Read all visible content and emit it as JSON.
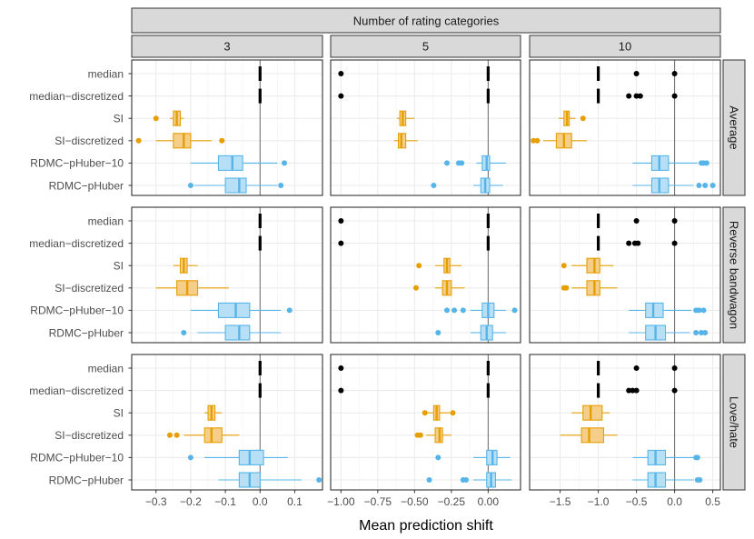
{
  "chart_data": {
    "type": "boxplot",
    "facet_title": "Number of rating categories",
    "col_facets": [
      "3",
      "5",
      "10"
    ],
    "row_facets": [
      "Average",
      "Reverse bandwagon",
      "Love/hate"
    ],
    "methods": [
      "median",
      "median−discretized",
      "SI",
      "SI−discretized",
      "RDMC−pHuber−10",
      "RDMC−pHuber"
    ],
    "xlabel": "Mean prediction shift",
    "colors": {
      "black": "#000000",
      "orange": "#E69F00",
      "blue": "#56B4E9"
    },
    "method_colors": [
      "black",
      "black",
      "orange",
      "orange",
      "blue",
      "blue"
    ],
    "columns": [
      {
        "xlim": [
          -0.37,
          0.18
        ],
        "ticks": [
          -0.3,
          -0.2,
          -0.1,
          0.0,
          0.1
        ],
        "tick_labels": [
          "−0.3",
          "−0.2",
          "−0.1",
          "0.0",
          "0.1"
        ]
      },
      {
        "xlim": [
          -1.07,
          0.22
        ],
        "ticks": [
          -1.0,
          -0.75,
          -0.5,
          -0.25,
          0.0
        ],
        "tick_labels": [
          "−1.00",
          "−0.75",
          "−0.50",
          "−0.25",
          "0.00"
        ]
      },
      {
        "xlim": [
          -1.9,
          0.6
        ],
        "ticks": [
          -1.5,
          -1.0,
          -0.5,
          0.0,
          0.5
        ],
        "tick_labels": [
          "−1.5",
          "−1.0",
          "−0.5",
          "0.0",
          "0.5"
        ]
      }
    ],
    "panels": [
      [
        {
          "boxes": [
            [
              0,
              0,
              0,
              0,
              0
            ],
            [
              0,
              0,
              0,
              0,
              0
            ],
            [
              -0.26,
              -0.25,
              -0.24,
              -0.23,
              -0.22
            ],
            [
              -0.3,
              -0.25,
              -0.22,
              -0.2,
              -0.14
            ],
            [
              -0.2,
              -0.12,
              -0.08,
              -0.05,
              0.05
            ],
            [
              -0.19,
              -0.1,
              -0.06,
              -0.04,
              0.05
            ]
          ],
          "outliers": [
            [],
            [],
            [
              -0.3
            ],
            [
              -0.35,
              -0.11
            ],
            [
              0.07
            ],
            [
              -0.2,
              0.06
            ]
          ]
        },
        {
          "boxes": [
            [
              0,
              0,
              0,
              0,
              0
            ],
            [
              0,
              0,
              0,
              0,
              0
            ],
            [
              -0.62,
              -0.6,
              -0.58,
              -0.56,
              -0.5
            ],
            [
              -0.64,
              -0.61,
              -0.59,
              -0.56,
              -0.48
            ],
            [
              -0.08,
              -0.04,
              -0.01,
              0.01,
              0.12
            ],
            [
              -0.1,
              -0.05,
              -0.02,
              0.01,
              0.1
            ]
          ],
          "outliers": [
            [
              -1.0
            ],
            [
              -1.0
            ],
            [],
            [],
            [
              -0.28,
              -0.2,
              -0.18
            ],
            [
              -0.37
            ]
          ]
        },
        {
          "boxes": [
            [
              -1.0,
              -1.0,
              -1.0,
              -1.0,
              -1.0
            ],
            [
              -1.0,
              -1.0,
              -1.0,
              -1.0,
              -1.0
            ],
            [
              -1.52,
              -1.45,
              -1.41,
              -1.38,
              -1.3
            ],
            [
              -1.72,
              -1.55,
              -1.45,
              -1.35,
              -1.15
            ],
            [
              -0.55,
              -0.3,
              -0.2,
              -0.08,
              0.3
            ],
            [
              -0.55,
              -0.3,
              -0.2,
              -0.08,
              0.25
            ]
          ],
          "outliers": [
            [
              -0.5,
              0.0
            ],
            [
              -0.6,
              -0.5,
              -0.45,
              0.0
            ],
            [
              -1.2
            ],
            [
              -1.85,
              -1.8
            ],
            [
              0.35,
              0.38,
              0.42
            ],
            [
              0.32,
              0.4,
              0.5
            ]
          ]
        }
      ],
      [
        {
          "boxes": [
            [
              0,
              0,
              0,
              0,
              0
            ],
            [
              0,
              0,
              0,
              0,
              0
            ],
            [
              -0.25,
              -0.23,
              -0.22,
              -0.21,
              -0.18
            ],
            [
              -0.3,
              -0.24,
              -0.21,
              -0.18,
              -0.09
            ],
            [
              -0.2,
              -0.12,
              -0.07,
              -0.03,
              0.06
            ],
            [
              -0.18,
              -0.1,
              -0.06,
              -0.03,
              0.06
            ]
          ],
          "outliers": [
            [],
            [],
            [],
            [],
            [
              0.085
            ],
            [
              -0.22
            ]
          ]
        },
        {
          "boxes": [
            [
              0,
              0,
              0,
              0,
              0
            ],
            [
              0,
              0,
              0,
              0,
              0
            ],
            [
              -0.36,
              -0.3,
              -0.28,
              -0.26,
              -0.18
            ],
            [
              -0.36,
              -0.31,
              -0.28,
              -0.25,
              -0.16
            ],
            [
              -0.12,
              -0.04,
              0.0,
              0.04,
              0.12
            ],
            [
              -0.12,
              -0.05,
              -0.01,
              0.03,
              0.12
            ]
          ],
          "outliers": [
            [
              -1.0
            ],
            [
              -1.0
            ],
            [
              -0.47
            ],
            [
              -0.49
            ],
            [
              -0.28,
              -0.23,
              -0.17,
              0.18
            ],
            [
              -0.34
            ]
          ]
        },
        {
          "boxes": [
            [
              -1.0,
              -1.0,
              -1.0,
              -1.0,
              -1.0
            ],
            [
              -1.0,
              -1.0,
              -1.0,
              -1.0,
              -1.0
            ],
            [
              -1.35,
              -1.15,
              -1.05,
              -0.98,
              -0.8
            ],
            [
              -1.35,
              -1.15,
              -1.05,
              -0.98,
              -0.75
            ],
            [
              -0.6,
              -0.38,
              -0.28,
              -0.15,
              0.22
            ],
            [
              -0.6,
              -0.38,
              -0.25,
              -0.12,
              0.2
            ]
          ],
          "outliers": [
            [
              -0.5,
              0.0
            ],
            [
              -0.6,
              -0.52,
              -0.48,
              0.0
            ],
            [
              -1.45
            ],
            [
              -1.45,
              -1.42
            ],
            [
              0.28,
              0.32,
              0.38
            ],
            [
              0.28,
              0.35,
              0.4
            ]
          ]
        }
      ],
      [
        {
          "boxes": [
            [
              0,
              0,
              0,
              0,
              0
            ],
            [
              0,
              0,
              0,
              0,
              0
            ],
            [
              -0.16,
              -0.15,
              -0.14,
              -0.13,
              -0.11
            ],
            [
              -0.22,
              -0.16,
              -0.14,
              -0.11,
              -0.06
            ],
            [
              -0.16,
              -0.06,
              -0.03,
              0.01,
              0.08
            ],
            [
              -0.12,
              -0.06,
              -0.03,
              0.0,
              0.12
            ]
          ],
          "outliers": [
            [],
            [],
            [],
            [
              -0.26,
              -0.24
            ],
            [
              -0.2
            ],
            [
              0.17
            ]
          ]
        },
        {
          "boxes": [
            [
              0,
              0,
              0,
              0,
              0
            ],
            [
              0,
              0,
              0,
              0,
              0
            ],
            [
              -0.42,
              -0.37,
              -0.35,
              -0.33,
              -0.26
            ],
            [
              -0.42,
              -0.36,
              -0.33,
              -0.31,
              -0.25
            ],
            [
              -0.1,
              -0.01,
              0.03,
              0.06,
              0.15
            ],
            [
              -0.1,
              -0.01,
              0.02,
              0.05,
              0.16
            ]
          ],
          "outliers": [
            [
              -1.0
            ],
            [
              -1.0
            ],
            [
              -0.43,
              -0.24
            ],
            [
              -0.48,
              -0.46
            ],
            [
              -0.34
            ],
            [
              -0.4,
              -0.17,
              -0.15
            ]
          ]
        },
        {
          "boxes": [
            [
              -1.0,
              -1.0,
              -1.0,
              -1.0,
              -1.0
            ],
            [
              -1.0,
              -1.0,
              -1.0,
              -1.0,
              -1.0
            ],
            [
              -1.35,
              -1.2,
              -1.1,
              -0.95,
              -0.85
            ],
            [
              -1.5,
              -1.22,
              -1.12,
              -0.93,
              -0.75
            ],
            [
              -0.55,
              -0.35,
              -0.25,
              -0.12,
              0.25
            ],
            [
              -0.55,
              -0.35,
              -0.25,
              -0.12,
              0.25
            ]
          ],
          "outliers": [
            [
              -0.5,
              0.0
            ],
            [
              -0.6,
              -0.55,
              -0.5,
              0.0
            ],
            [],
            [],
            [
              0.28,
              0.3
            ],
            [
              0.3,
              0.33
            ]
          ]
        }
      ]
    ]
  }
}
